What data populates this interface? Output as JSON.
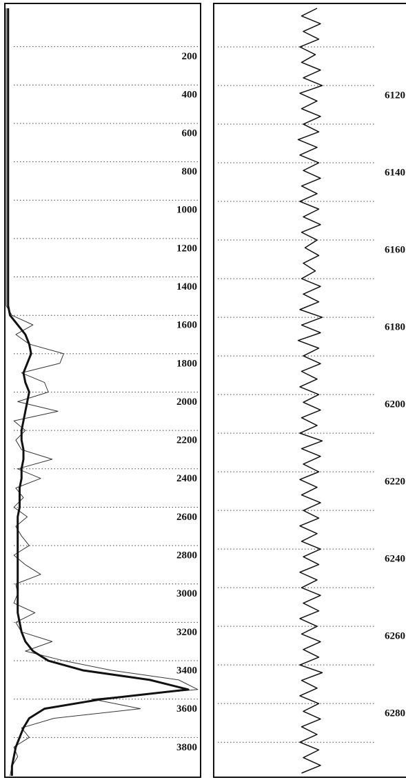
{
  "chart_data": [
    {
      "type": "line",
      "orientation": "vertical",
      "grid": "dotted",
      "x": [
        0,
        50,
        100,
        150,
        200,
        250,
        300,
        350,
        400,
        450,
        500,
        550,
        600,
        650,
        700,
        750,
        800,
        850,
        900,
        950,
        1000,
        1050,
        1100,
        1150,
        1200,
        1250,
        1300,
        1350,
        1400,
        1450,
        1500,
        1550,
        1600,
        1650,
        1700,
        1750,
        1800,
        1850,
        1900,
        1950,
        2000,
        2050,
        2100,
        2150,
        2200,
        2250,
        2300,
        2350,
        2400,
        2450,
        2500,
        2550,
        2600,
        2650,
        2700,
        2750,
        2800,
        2850,
        2900,
        2950,
        3000,
        3050,
        3100,
        3150,
        3200,
        3250,
        3300,
        3350,
        3400,
        3450,
        3500,
        3550,
        3600,
        3650,
        3700,
        3750,
        3800,
        3850,
        3900,
        3950,
        4000
      ],
      "xlim": [
        0,
        4000
      ],
      "xticks": [
        200,
        400,
        600,
        800,
        1000,
        1200,
        1400,
        1600,
        1800,
        2000,
        2200,
        2400,
        2600,
        2800,
        3000,
        3200,
        3400,
        3600,
        3800
      ],
      "ylim": [
        0,
        100
      ],
      "series": [
        {
          "color": "#333333",
          "width": 1,
          "values": [
            0,
            0,
            0,
            0,
            0,
            0,
            0,
            0,
            0,
            0,
            0,
            0,
            0,
            0,
            0,
            0,
            0,
            0,
            0,
            0,
            0,
            0,
            0,
            0,
            0,
            0,
            0,
            0,
            0,
            0,
            0,
            0,
            3,
            14,
            5,
            12,
            30,
            28,
            8,
            20,
            22,
            6,
            27,
            4,
            10,
            5,
            8,
            24,
            6,
            18,
            5,
            9,
            4,
            11,
            5,
            8,
            12,
            4,
            10,
            18,
            5,
            6,
            4,
            15,
            5,
            8,
            24,
            10,
            30,
            55,
            90,
            100,
            45,
            70,
            25,
            8,
            12,
            4,
            6,
            3,
            2
          ]
        },
        {
          "color": "#111111",
          "width": 3,
          "values": [
            1,
            1,
            1,
            1,
            1,
            1,
            1,
            1,
            1,
            1,
            1,
            1,
            1,
            1,
            1,
            1,
            1,
            1,
            1,
            1,
            1,
            1,
            1,
            1,
            1,
            1,
            1,
            1,
            1,
            1,
            1,
            1,
            2,
            6,
            10,
            12,
            13,
            11,
            9,
            10,
            12,
            11,
            10,
            9,
            8,
            8,
            9,
            9,
            8,
            8,
            7,
            7,
            7,
            6,
            6,
            6,
            6,
            6,
            6,
            6,
            6,
            6,
            6,
            6,
            7,
            8,
            10,
            14,
            22,
            40,
            75,
            95,
            50,
            20,
            12,
            9,
            7,
            5,
            4,
            3,
            3
          ]
        }
      ]
    },
    {
      "type": "line",
      "orientation": "vertical",
      "grid": "dotted",
      "x": [
        6100,
        6102,
        6104,
        6106,
        6108,
        6110,
        6112,
        6114,
        6116,
        6118,
        6120,
        6122,
        6124,
        6126,
        6128,
        6130,
        6132,
        6134,
        6136,
        6138,
        6140,
        6142,
        6144,
        6146,
        6148,
        6150,
        6152,
        6154,
        6156,
        6158,
        6160,
        6162,
        6164,
        6166,
        6168,
        6170,
        6172,
        6174,
        6176,
        6178,
        6180,
        6182,
        6184,
        6186,
        6188,
        6190,
        6192,
        6194,
        6196,
        6198,
        6200,
        6202,
        6204,
        6206,
        6208,
        6210,
        6212,
        6214,
        6216,
        6218,
        6220,
        6222,
        6224,
        6226,
        6228,
        6230,
        6232,
        6234,
        6236,
        6238,
        6240,
        6242,
        6244,
        6246,
        6248,
        6250,
        6252,
        6254,
        6256,
        6258,
        6260,
        6262,
        6264,
        6266,
        6268,
        6270,
        6272,
        6274,
        6276,
        6278,
        6280,
        6282,
        6284,
        6286,
        6288,
        6290,
        6292,
        6294,
        6296,
        6298
      ],
      "xlim": [
        6100,
        6298
      ],
      "xticks": [
        6120,
        6140,
        6160,
        6180,
        6200,
        6220,
        6240,
        6260,
        6280
      ],
      "x_minor_ticks": [
        6110,
        6130,
        6150,
        6170,
        6190,
        6210,
        6230,
        6250,
        6270,
        6290
      ],
      "ylim": [
        -1,
        1
      ],
      "series": [
        {
          "color": "#111111",
          "width": 1.5,
          "values": [
            0.2,
            -0.25,
            0.3,
            -0.2,
            0.25,
            -0.3,
            0.15,
            -0.25,
            0.3,
            -0.2,
            0.35,
            -0.3,
            0.2,
            -0.25,
            0.3,
            -0.2,
            0.25,
            -0.35,
            0.2,
            -0.3,
            0.25,
            -0.2,
            0.3,
            -0.25,
            0.2,
            -0.3,
            0.25,
            -0.2,
            0.3,
            -0.25,
            0.2,
            -0.15,
            0.25,
            -0.2,
            0.15,
            -0.25,
            0.3,
            -0.2,
            0.25,
            -0.3,
            0.35,
            -0.25,
            0.3,
            -0.35,
            0.25,
            -0.2,
            0.3,
            -0.25,
            0.2,
            -0.3,
            0.25,
            -0.2,
            0.3,
            -0.25,
            0.2,
            -0.3,
            0.35,
            -0.25,
            0.3,
            -0.2,
            0.25,
            -0.3,
            0.2,
            -0.25,
            0.3,
            -0.2,
            0.25,
            -0.3,
            0.2,
            -0.25,
            0.3,
            -0.2,
            0.25,
            -0.3,
            0.2,
            -0.25,
            0.3,
            -0.2,
            0.25,
            -0.3,
            0.2,
            -0.25,
            0.3,
            -0.2,
            0.25,
            -0.3,
            0.35,
            -0.25,
            0.2,
            -0.3,
            0.25,
            -0.2,
            0.3,
            -0.25,
            0.2,
            -0.3,
            0.25,
            -0.2,
            0.3,
            -0.25
          ]
        }
      ]
    }
  ]
}
